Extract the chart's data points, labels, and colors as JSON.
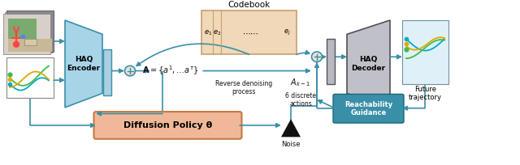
{
  "bg_color": "#ffffff",
  "codebook_title": "Codebook",
  "haq_encoder_text": "HAQ\nEncoder",
  "haq_decoder_text": "HAQ\nDecoder",
  "diffusion_text": "Diffusion Policy θ",
  "reachability_text": "Reachability\nGuidance",
  "A_text": "$\\mathbf{A} = \\{a^1,\\ldots a^\\tau\\}$",
  "Ak_text": "$A_{k-1}$",
  "discrete_text": "6 discrete\nactions",
  "reverse_text": "Reverse denoising\nprocess",
  "noise_text": "Noise",
  "future_text": "Future\ntrajectory",
  "arrow_color": "#3a8fa8",
  "haq_enc_color_light": "#a8d4e8",
  "haq_enc_color_dark": "#3a8fa8",
  "codebook_color": "#f0d8b8",
  "codebook_border": "#c8a070",
  "diffusion_color": "#f0b898",
  "diffusion_border": "#c87840",
  "reachability_color": "#3a8fa8",
  "circ_color": "#e8c8b8",
  "future_box_color": "#e0f0f8"
}
